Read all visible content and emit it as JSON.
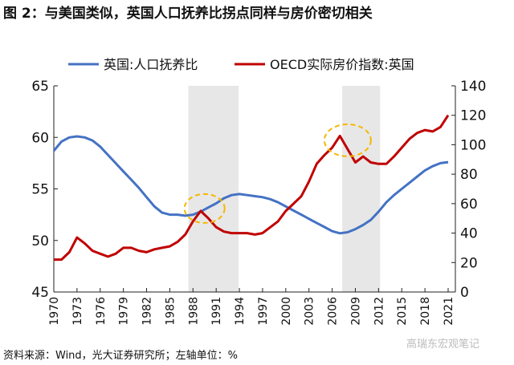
{
  "title": "图 2：与美国类似，英国人口抚养比拐点同样与房价密切相关",
  "source": "资料来源：Wind，光大证券研究所；左轴单位：%",
  "watermark": "高瑞东宏观笔记",
  "chart_data": {
    "type": "line",
    "x": [
      1970,
      1971,
      1972,
      1973,
      1974,
      1975,
      1976,
      1977,
      1978,
      1979,
      1980,
      1981,
      1982,
      1983,
      1984,
      1985,
      1986,
      1987,
      1988,
      1989,
      1990,
      1991,
      1992,
      1993,
      1994,
      1995,
      1996,
      1997,
      1998,
      1999,
      2000,
      2001,
      2002,
      2003,
      2004,
      2005,
      2006,
      2007,
      2008,
      2009,
      2010,
      2011,
      2012,
      2013,
      2014,
      2015,
      2016,
      2017,
      2018,
      2019,
      2020,
      2021
    ],
    "xticks": [
      "1970",
      "1973",
      "1976",
      "1979",
      "1982",
      "1985",
      "1988",
      "1991",
      "1994",
      "1997",
      "2000",
      "2003",
      "2006",
      "2009",
      "2012",
      "2015",
      "2018",
      "2021"
    ],
    "y_left": {
      "range": [
        45,
        65
      ],
      "ticks": [
        "45",
        "50",
        "55",
        "60",
        "65"
      ]
    },
    "y_right": {
      "range": [
        0,
        140
      ],
      "ticks": [
        "0",
        "20",
        "40",
        "60",
        "80",
        "100",
        "120",
        "140"
      ]
    },
    "series": [
      {
        "name": "英国:人口抚养比",
        "axis": "left",
        "color": "#4472C4",
        "values": [
          58.7,
          59.6,
          60.0,
          60.1,
          60.0,
          59.7,
          59.1,
          58.3,
          57.5,
          56.7,
          55.9,
          55.1,
          54.2,
          53.3,
          52.7,
          52.5,
          52.5,
          52.4,
          52.5,
          52.8,
          53.2,
          53.6,
          54.1,
          54.4,
          54.5,
          54.4,
          54.3,
          54.2,
          54.0,
          53.7,
          53.3,
          52.9,
          52.5,
          52.1,
          51.7,
          51.3,
          50.9,
          50.7,
          50.8,
          51.1,
          51.5,
          52.0,
          52.8,
          53.7,
          54.4,
          55.0,
          55.6,
          56.2,
          56.8,
          57.2,
          57.5,
          57.6
        ]
      },
      {
        "name": "OECD实际房价指数:英国",
        "axis": "right",
        "color": "#C00000",
        "values": [
          22,
          22,
          27,
          37,
          33,
          28,
          26,
          24,
          26,
          30,
          30,
          28,
          27,
          29,
          30,
          31,
          34,
          39,
          48,
          55,
          50,
          44,
          41,
          40,
          40,
          40,
          39,
          40,
          44,
          48,
          55,
          60,
          65,
          75,
          87,
          93,
          98,
          106,
          97,
          88,
          92,
          88,
          87,
          87,
          92,
          98,
          104,
          108,
          110,
          109,
          112,
          120
        ]
      }
    ],
    "shaded_periods": [
      [
        1987.4,
        1993.9
      ],
      [
        2007.3,
        2012.2
      ]
    ],
    "shade_color": "#E7E7E7",
    "highlight_color": "#F5B800",
    "legend": "top"
  }
}
